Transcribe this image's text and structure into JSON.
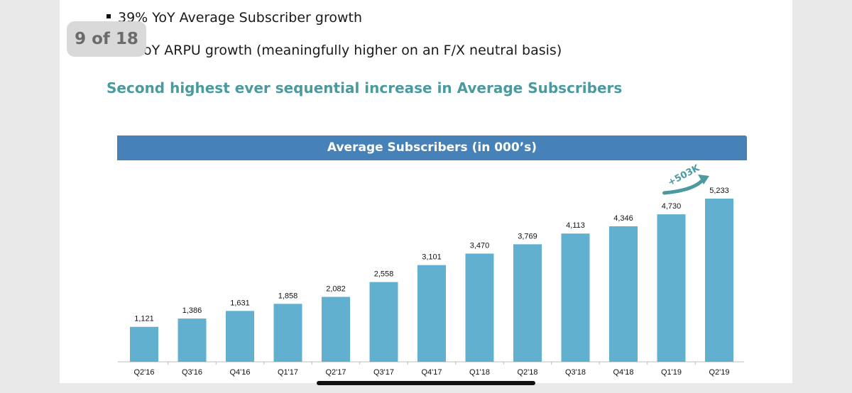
{
  "viewer": {
    "page_counter": "9 of 18"
  },
  "bullets": [
    "39% YoY Average Subscriber growth",
    "oY ARPU growth (meaningfully higher on an F/X neutral basis)"
  ],
  "section_title": "Second highest ever sequential increase in Average Subscribers",
  "colors": {
    "banner": "#4682b8",
    "bar": "#62b0d0",
    "accent": "#4a9aa0"
  },
  "chart_data": {
    "type": "bar",
    "title": "Average Subscribers (in 000’s)",
    "categories": [
      "Q2'16",
      "Q3'16",
      "Q4'16",
      "Q1'17",
      "Q2'17",
      "Q3'17",
      "Q4'17",
      "Q1'18",
      "Q2'18",
      "Q3'18",
      "Q4'18",
      "Q1'19",
      "Q2'19"
    ],
    "values": [
      1121,
      1386,
      1631,
      1858,
      2082,
      2558,
      3101,
      3470,
      3769,
      4113,
      4346,
      4730,
      5233
    ],
    "value_labels": [
      "1,121",
      "1,386",
      "1,631",
      "1,858",
      "2,082",
      "2,558",
      "3,101",
      "3,470",
      "3,769",
      "4,113",
      "4,346",
      "4,730",
      "5,233"
    ],
    "annotation": "+503K",
    "ylim": [
      0,
      5233
    ]
  }
}
